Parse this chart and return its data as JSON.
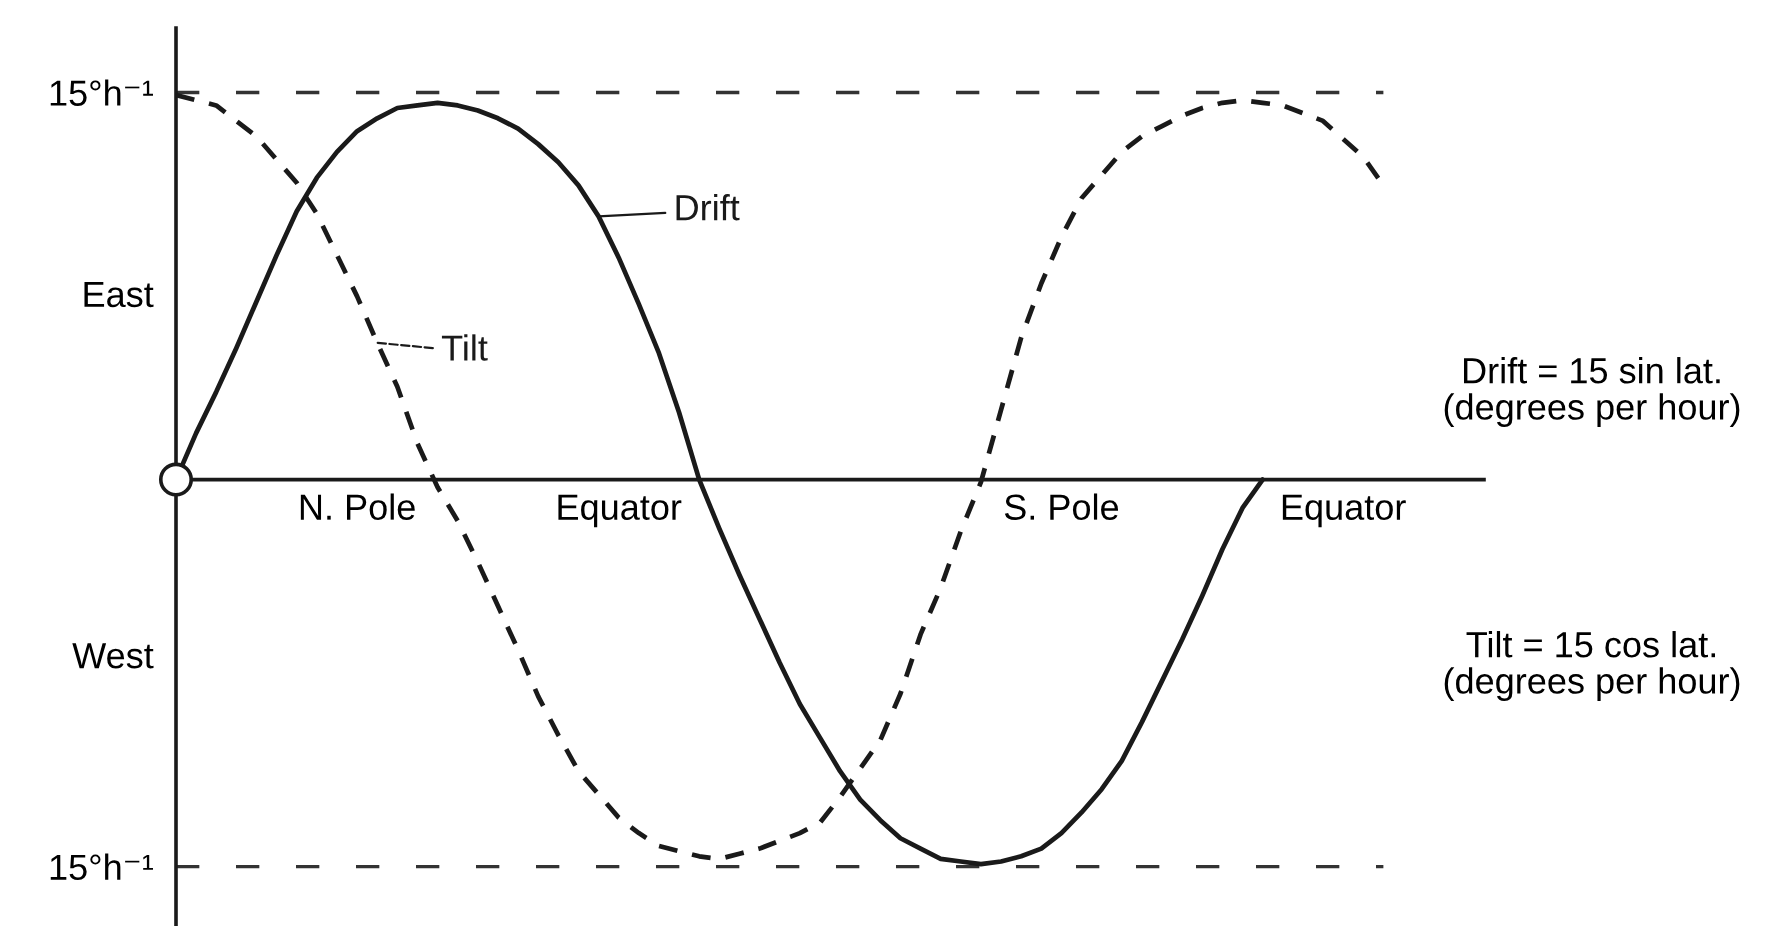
{
  "chart_data": {
    "type": "line",
    "ylim": [
      -17.3,
      17.5
    ],
    "legend": "top left",
    "categories": [
      null,
      null,
      null,
      null,
      null,
      null,
      null,
      null,
      null,
      "N. Pole",
      null,
      null,
      null,
      null,
      null,
      null,
      null,
      null,
      null,
      null,
      null,
      null,
      "Equator",
      null,
      null,
      null,
      null,
      null,
      null,
      null,
      null,
      null,
      null,
      null,
      null,
      null,
      null,
      null,
      null,
      null,
      null,
      null,
      null,
      null,
      "S. Pole",
      null,
      null,
      null,
      null,
      null,
      null,
      null,
      null,
      null,
      null,
      null,
      null,
      null,
      "Equator",
      null,
      null,
      null,
      null,
      null,
      null,
      null
    ],
    "yticks": [
      {
        "value": -15,
        "label": "15°h⁻¹"
      },
      {
        "value": -6.8,
        "label": "West"
      },
      {
        "value": 7.2,
        "label": "East"
      },
      {
        "value": 15,
        "label": "15°h⁻¹"
      }
    ],
    "ref_lines": [
      {
        "axis": "y",
        "value": 15,
        "color": "#333333",
        "line_style": "dashed"
      },
      {
        "axis": "y",
        "value": -15,
        "color": "#333333",
        "line_style": "dashed"
      }
    ],
    "series": [
      {
        "name": "Drift",
        "color": "#1a1a1a",
        "line_style": "solid",
        "values": [
          0,
          1.8,
          3.4,
          5.1,
          6.9,
          8.7,
          10.4,
          11.7,
          12.7,
          13.5,
          14.0,
          14.4,
          14.5,
          14.6,
          14.5,
          14.3,
          14.0,
          13.6,
          13.0,
          12.3,
          11.4,
          10.2,
          8.6,
          6.8,
          4.9,
          2.6,
          0,
          -1.9,
          -3.7,
          -5.4,
          -7.1,
          -8.7,
          -10.0,
          -11.3,
          -12.4,
          -13.2,
          -13.9,
          -14.3,
          -14.7,
          -14.8,
          -14.9,
          -14.8,
          -14.6,
          -14.3,
          -13.7,
          -12.9,
          -12.0,
          -10.9,
          -9.4,
          -7.8,
          -6.2,
          -4.5,
          -2.7,
          -1.1,
          0,
          null,
          null,
          null,
          null,
          null,
          null,
          null,
          null,
          null,
          null,
          null
        ]
      },
      {
        "name": "Tilt",
        "color": "#1a1a1a",
        "line_style": "dashed",
        "values": [
          14.9,
          14.7,
          14.5,
          13.9,
          13.3,
          12.4,
          11.5,
          10.3,
          8.7,
          7.1,
          5.3,
          3.6,
          1.4,
          -0.3,
          -1.6,
          -3.2,
          -4.9,
          -6.6,
          -8.4,
          -9.9,
          -11.3,
          -12.2,
          -13.1,
          -13.7,
          -14.2,
          -14.4,
          -14.6,
          -14.7,
          -14.5,
          -14.3,
          -14.0,
          -13.7,
          -13.3,
          -12.3,
          -11.2,
          -10.1,
          -8.3,
          -6.0,
          -4.2,
          -2.0,
          -0.1,
          2.7,
          5.5,
          7.6,
          9.4,
          10.9,
          11.8,
          12.7,
          13.3,
          13.7,
          14.1,
          14.4,
          14.6,
          14.7,
          14.6,
          14.5,
          14.2,
          13.9,
          13.2,
          12.5,
          11.4,
          null,
          null,
          null,
          null,
          null
        ]
      },
      {
        "type": "scatter",
        "marker": "circle",
        "color": "#1a1a1a",
        "values": [
          0,
          null,
          null,
          null,
          null,
          null,
          null,
          null,
          null,
          null,
          null,
          null,
          null,
          null,
          null,
          null,
          null,
          null,
          null,
          null,
          null,
          null,
          null,
          null,
          null,
          null,
          null,
          null,
          null,
          null,
          null,
          null,
          null,
          null,
          null,
          null,
          null,
          null,
          null,
          null,
          null,
          null,
          null,
          null,
          null,
          null,
          null,
          null,
          null,
          null,
          null,
          null,
          null,
          null,
          null,
          null,
          null,
          null,
          null,
          null,
          null,
          null,
          null,
          null,
          null,
          null
        ]
      }
    ],
    "annotations": [
      "Drift = 15 sin lat.\n(degrees per hour)",
      "Tilt = 15 cos lat.\n(degrees per hour)"
    ]
  }
}
